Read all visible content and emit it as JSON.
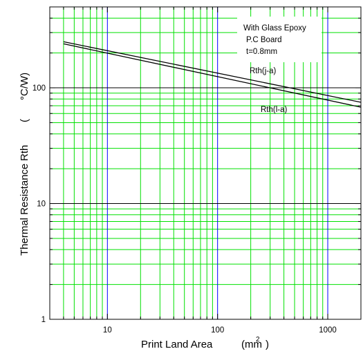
{
  "chart_data": {
    "type": "line",
    "title": "",
    "xlabel": "Print Land Area",
    "xunit": "(mm",
    "xunit_sup": "2",
    "xunit_close": ")",
    "ylabel": "Thermal Resistance",
    "ylabel_symbol": "Rth",
    "ylabel_unit_open": "(",
    "ylabel_unit": "°C/W)",
    "xscale": "log",
    "yscale": "log",
    "xlim": [
      3,
      2000
    ],
    "ylim": [
      1,
      500
    ],
    "x_ticks": [
      {
        "value": 10,
        "label": "10"
      },
      {
        "value": 100,
        "label": "100"
      },
      {
        "value": 1000,
        "label": "1000"
      }
    ],
    "y_ticks": [
      {
        "value": 1,
        "label": "1"
      },
      {
        "value": 10,
        "label": "10"
      },
      {
        "value": 100,
        "label": "100"
      }
    ],
    "grid": true,
    "grid_minor_color": "#00e000",
    "grid_major_x_color": "#0000ff",
    "grid_major_y_color": "#000000",
    "line_color": "#000000",
    "annotation": {
      "lines": [
        "With Glass Epoxy",
        "P.C Board",
        "t=0.8mm"
      ]
    },
    "series": [
      {
        "name": "Rth(j-a)",
        "x": [
          4,
          2000
        ],
        "y": [
          250,
          75
        ]
      },
      {
        "name": "Rth(l-a)",
        "x": [
          4,
          2000
        ],
        "y": [
          240,
          68
        ]
      }
    ]
  }
}
